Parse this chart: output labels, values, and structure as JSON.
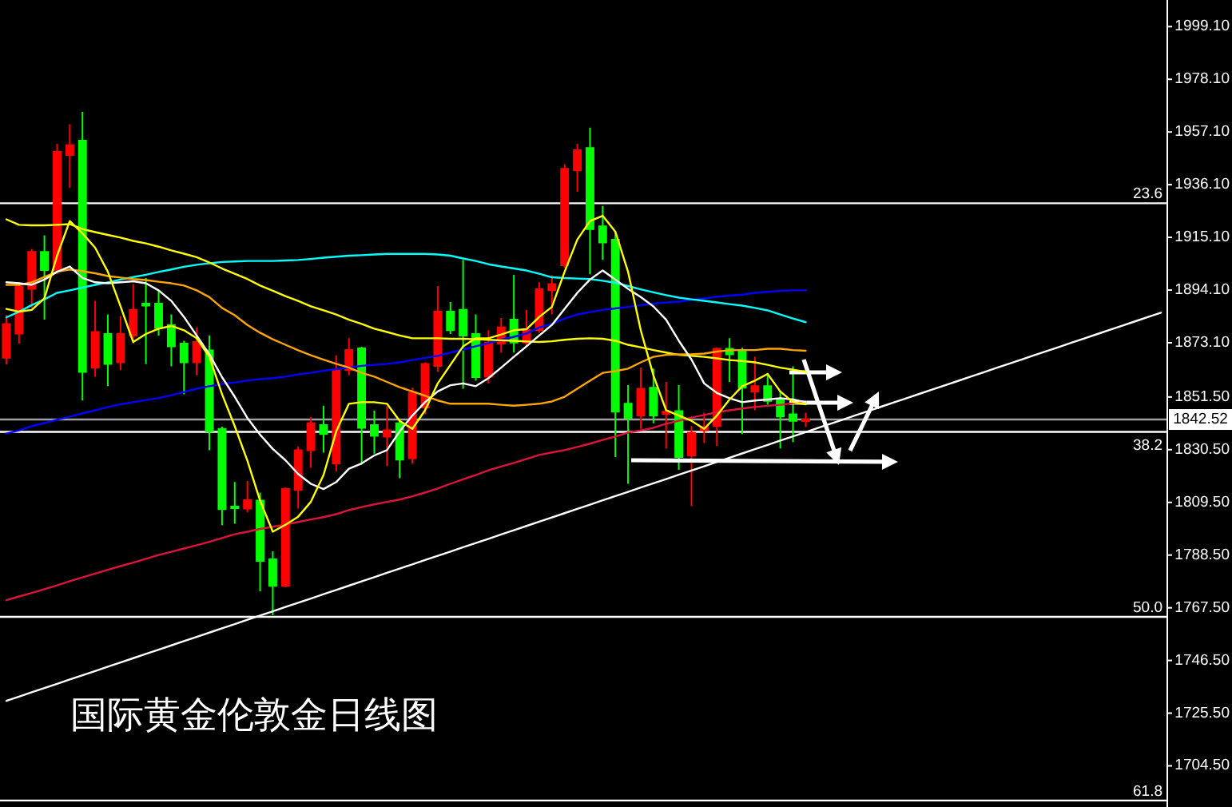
{
  "chart_data": {
    "type": "candlestick",
    "title": "国际黄金伦敦金日线图",
    "categories": [
      null,
      null,
      null,
      null,
      null,
      null,
      null,
      null,
      null,
      null,
      null,
      null,
      null,
      null,
      null,
      null,
      null,
      null,
      null,
      null,
      null,
      null,
      null,
      null,
      null,
      null,
      null,
      null,
      null,
      null,
      null,
      null,
      null,
      null,
      null,
      null,
      null,
      null,
      null,
      null,
      null,
      null,
      null,
      null,
      null,
      null,
      null,
      null,
      null,
      null,
      null,
      null,
      null,
      null,
      null,
      null,
      null,
      null,
      null,
      null,
      null,
      null,
      null,
      null,
      null,
      null,
      null,
      null,
      null,
      null,
      null,
      null,
      null,
      null,
      null,
      null,
      null,
      null,
      null,
      null,
      null,
      null,
      null,
      null,
      null,
      null,
      null,
      null,
      null,
      null,
      null,
      null
    ],
    "ohlc": [
      [
        1867.1,
        1884.2,
        1864.5,
        1880.6
      ],
      [
        1876.8,
        1897.2,
        1872.8,
        1895.5
      ],
      [
        1894.6,
        1910.4,
        1887.0,
        1909.3
      ],
      [
        1909.3,
        1915.9,
        1882.3,
        1902.1
      ],
      [
        1902.1,
        1952.4,
        1900.4,
        1949.2
      ],
      [
        1947.9,
        1960.2,
        1934.8,
        1951.8
      ],
      [
        1953.7,
        1965.1,
        1850.1,
        1861.5
      ],
      [
        1863.2,
        1889.8,
        1859.6,
        1877.4
      ],
      [
        1876.6,
        1884.4,
        1855.8,
        1864.7
      ],
      [
        1865.3,
        1883.8,
        1862.2,
        1876.6
      ],
      [
        1876.0,
        1896.5,
        1872.8,
        1886.2
      ],
      [
        1888.7,
        1898.9,
        1864.7,
        1887.9
      ],
      [
        1888.7,
        1894.0,
        1876.0,
        1879.0
      ],
      [
        1880.2,
        1884.4,
        1863.7,
        1871.7
      ],
      [
        1872.8,
        1873.9,
        1852.6,
        1865.3
      ],
      [
        1865.3,
        1879.2,
        1860.1,
        1873.4
      ],
      [
        1870.1,
        1876.0,
        1830.3,
        1837.8
      ],
      [
        1838.8,
        1839.7,
        1800.4,
        1806.8
      ],
      [
        1807.8,
        1817.6,
        1801.0,
        1807.2
      ],
      [
        1807.0,
        1818.0,
        1805.5,
        1810.4
      ],
      [
        1810.2,
        1813.4,
        1774.1,
        1786.2
      ],
      [
        1786.8,
        1790.0,
        1764.5,
        1776.2
      ],
      [
        1776.2,
        1815.5,
        1775.7,
        1814.8
      ],
      [
        1814.4,
        1831.8,
        1807.0,
        1830.3
      ],
      [
        1830.3,
        1843.5,
        1823.3,
        1841.0
      ],
      [
        1840.3,
        1848.0,
        1829.3,
        1836.7
      ],
      [
        1825.0,
        1868.1,
        1821.8,
        1862.2
      ],
      [
        1862.2,
        1874.9,
        1860.1,
        1870.2
      ],
      [
        1870.9,
        1871.5,
        1824.6,
        1839.2
      ],
      [
        1840.3,
        1846.0,
        1828.9,
        1836.0
      ],
      [
        1835.7,
        1847.8,
        1824.0,
        1838.2
      ],
      [
        1841.0,
        1842.4,
        1819.1,
        1826.5
      ],
      [
        1827.1,
        1855.2,
        1825.0,
        1853.2
      ],
      [
        1847.3,
        1865.3,
        1844.6,
        1864.7
      ],
      [
        1863.9,
        1895.7,
        1861.5,
        1885.5
      ],
      [
        1885.5,
        1889.3,
        1876.6,
        1878.1
      ],
      [
        1886.2,
        1906.1,
        1854.8,
        1876.0
      ],
      [
        1876.6,
        1884.4,
        1858.0,
        1859.4
      ],
      [
        1859.6,
        1878.1,
        1856.9,
        1873.2
      ],
      [
        1872.8,
        1883.0,
        1869.2,
        1879.2
      ],
      [
        1882.3,
        1900.2,
        1869.2,
        1873.2
      ],
      [
        1873.2,
        1886.2,
        1871.7,
        1878.1
      ],
      [
        1878.1,
        1897.2,
        1877.1,
        1894.4
      ],
      [
        1894.0,
        1900.0,
        1884.4,
        1896.5
      ],
      [
        1904.0,
        1944.3,
        1902.9,
        1942.4
      ],
      [
        1941.8,
        1952.4,
        1933.3,
        1949.8
      ],
      [
        1950.7,
        1958.8,
        1900.4,
        1918.4
      ],
      [
        1919.5,
        1927.6,
        1906.1,
        1913.1
      ],
      [
        1914.2,
        1917.4,
        1827.6,
        1845.6
      ],
      [
        1848.8,
        1856.2,
        1816.9,
        1843.1
      ],
      [
        1844.1,
        1863.2,
        1838.8,
        1854.8
      ],
      [
        1855.2,
        1862.8,
        1841.0,
        1844.1
      ],
      [
        1844.8,
        1857.5,
        1831.0,
        1845.6
      ],
      [
        1845.9,
        1856.2,
        1822.5,
        1827.6
      ],
      [
        1828.2,
        1839.9,
        1808.0,
        1837.3
      ],
      [
        1838.2,
        1845.2,
        1833.1,
        1839.5
      ],
      [
        1839.9,
        1871.3,
        1832.0,
        1870.7
      ],
      [
        1870.7,
        1874.9,
        1857.5,
        1868.5
      ],
      [
        1869.6,
        1871.1,
        1836.7,
        1855.2
      ],
      [
        1853.7,
        1867.5,
        1846.2,
        1855.8
      ],
      [
        1855.8,
        1861.1,
        1848.4,
        1849.9
      ],
      [
        1850.5,
        1853.7,
        1831.0,
        1843.7
      ],
      [
        1844.6,
        1863.7,
        1833.5,
        1842.0
      ],
      [
        1841.8,
        1845.2,
        1839.5,
        1842.52
      ],
      null,
      null,
      null,
      null,
      null,
      null,
      null,
      null,
      null,
      null,
      null,
      null,
      null,
      null,
      null,
      null,
      null,
      null,
      null,
      null,
      null,
      null,
      null,
      null,
      null,
      null,
      null,
      null
    ],
    "colors": [
      "#ff0000",
      "#ff0000",
      "#ff0000",
      "#00ff00",
      "#ff0000",
      "#ff0000",
      "#00ff00",
      "#ff0000",
      "#00ff00",
      "#ff0000",
      "#ff0000",
      "#00ff00",
      "#00ff00",
      "#00ff00",
      "#00ff00",
      "#ff0000",
      "#00ff00",
      "#00ff00",
      "#00ff00",
      "#ff0000",
      "#00ff00",
      "#00ff00",
      "#ff0000",
      "#ff0000",
      "#ff0000",
      "#00ff00",
      "#ff0000",
      "#ff0000",
      "#00ff00",
      "#00ff00",
      "#ff0000",
      "#00ff00",
      "#ff0000",
      "#ff0000",
      "#ff0000",
      "#00ff00",
      "#00ff00",
      "#00ff00",
      "#ff0000",
      "#ff0000",
      "#00ff00",
      "#ff0000",
      "#ff0000",
      "#ff0000",
      "#ff0000",
      "#ff0000",
      "#00ff00",
      "#00ff00",
      "#00ff00",
      "#00ff00",
      "#ff0000",
      "#00ff00",
      "#ff0000",
      "#00ff00",
      "#ff0000",
      "#ff0000",
      "#ff0000",
      "#00ff00",
      "#00ff00",
      "#ff0000",
      "#00ff00",
      "#00ff00",
      "#00ff00",
      "#ff0000",
      null,
      null,
      null,
      null,
      null,
      null,
      null,
      null,
      null,
      null,
      null,
      null,
      null,
      null,
      null,
      null,
      null,
      null,
      null,
      null,
      null,
      null,
      null,
      null,
      null,
      null,
      null,
      null
    ],
    "series": [
      {
        "type": "line",
        "color": "#dc143c",
        "values": [
          1770.5,
          1772.0,
          1773.4,
          1774.9,
          1776.4,
          1778.1,
          1779.6,
          1781.1,
          1782.6,
          1784.1,
          1785.5,
          1787.0,
          1788.5,
          1789.8,
          1791.1,
          1792.4,
          1793.8,
          1795.3,
          1796.8,
          1797.8,
          1798.9,
          1799.8,
          1800.6,
          1801.7,
          1802.7,
          1803.6,
          1804.8,
          1806.4,
          1807.6,
          1808.7,
          1809.7,
          1810.6,
          1811.9,
          1813.4,
          1815.0,
          1816.9,
          1818.7,
          1820.4,
          1822.3,
          1823.8,
          1825.2,
          1826.8,
          1828.4,
          1829.4,
          1830.3,
          1831.6,
          1832.9,
          1834.4,
          1835.7,
          1837.3,
          1838.2,
          1839.2,
          1840.8,
          1842.0,
          1843.3,
          1844.3,
          1845.4,
          1846.2,
          1846.9,
          1847.5,
          1848.0,
          1848.4,
          1849.0,
          1849.4,
          null,
          null,
          null,
          null,
          null,
          null,
          null,
          null,
          null,
          null,
          null,
          null,
          null,
          null,
          null,
          null,
          null,
          null,
          null,
          null,
          null,
          null,
          null,
          null,
          null,
          null,
          null,
          null
        ]
      },
      {
        "type": "line",
        "color": "#0000ff",
        "values": [
          1836.9,
          1838.2,
          1839.9,
          1841.1,
          1842.4,
          1843.7,
          1845.0,
          1846.2,
          1847.5,
          1848.6,
          1849.4,
          1850.3,
          1851.1,
          1852.2,
          1853.5,
          1854.8,
          1855.8,
          1856.7,
          1857.3,
          1858.0,
          1858.6,
          1859.0,
          1859.6,
          1860.5,
          1861.1,
          1862.0,
          1862.6,
          1863.2,
          1863.9,
          1864.3,
          1864.7,
          1865.3,
          1866.2,
          1867.1,
          1867.9,
          1869.2,
          1870.4,
          1871.7,
          1873.0,
          1874.3,
          1875.5,
          1876.8,
          1879.2,
          1880.7,
          1882.8,
          1884.4,
          1885.3,
          1886.2,
          1886.8,
          1887.4,
          1888.1,
          1888.7,
          1889.2,
          1889.5,
          1890.2,
          1890.8,
          1891.4,
          1891.9,
          1892.3,
          1893.0,
          1893.4,
          1893.8,
          1894.0,
          1894.0,
          null,
          null,
          null,
          null,
          null,
          null,
          null,
          null,
          null,
          null,
          null,
          null,
          null,
          null,
          null,
          null,
          null,
          null,
          null,
          null,
          null,
          null,
          null,
          null,
          null,
          null,
          null,
          null
        ]
      },
      {
        "type": "line",
        "color": "#00ffff",
        "values": [
          1883.2,
          1885.5,
          1888.1,
          1890.4,
          1893.0,
          1894.0,
          1895.1,
          1896.2,
          1897.2,
          1898.3,
          1899.3,
          1900.2,
          1901.3,
          1902.3,
          1903.4,
          1904.2,
          1904.8,
          1905.3,
          1905.5,
          1905.7,
          1905.7,
          1905.7,
          1905.9,
          1906.1,
          1906.5,
          1907.0,
          1907.4,
          1907.8,
          1908.0,
          1908.3,
          1908.5,
          1908.5,
          1908.5,
          1908.5,
          1908.3,
          1907.8,
          1906.7,
          1905.7,
          1904.4,
          1903.5,
          1902.7,
          1901.9,
          1900.6,
          1899.2,
          1898.9,
          1898.7,
          1898.5,
          1897.8,
          1897.0,
          1895.7,
          1894.4,
          1893.2,
          1892.1,
          1891.1,
          1890.4,
          1889.8,
          1889.2,
          1888.5,
          1887.9,
          1887.0,
          1886.0,
          1884.4,
          1882.8,
          1881.3,
          null,
          null,
          null,
          null,
          null,
          null,
          null,
          null,
          null,
          null,
          null,
          null,
          null,
          null,
          null,
          null,
          null,
          null,
          null,
          null,
          null,
          null,
          null,
          null,
          null,
          null,
          null,
          null
        ]
      },
      {
        "type": "line",
        "color": "#ffff00",
        "values": [
          1922.3,
          1920.1,
          1919.9,
          1919.9,
          1920.1,
          1920.4,
          1918.4,
          1917.2,
          1916.1,
          1915.0,
          1913.7,
          1912.7,
          1911.4,
          1909.9,
          1908.6,
          1907.2,
          1905.1,
          1902.7,
          1900.6,
          1898.5,
          1895.9,
          1893.8,
          1891.7,
          1889.8,
          1887.6,
          1886.0,
          1884.4,
          1882.3,
          1880.6,
          1878.7,
          1877.4,
          1876.0,
          1874.9,
          1874.9,
          1874.9,
          1874.7,
          1874.7,
          1874.5,
          1874.3,
          1874.1,
          1873.9,
          1873.6,
          1873.4,
          1873.7,
          1874.3,
          1874.7,
          1874.9,
          1874.7,
          1873.9,
          1872.3,
          1871.3,
          1870.2,
          1869.2,
          1868.3,
          1867.9,
          1867.5,
          1866.9,
          1866.2,
          1865.8,
          1865.3,
          1864.3,
          1863.2,
          1862.4,
          1861.5,
          null,
          null,
          null,
          null,
          null,
          null,
          null,
          null,
          null,
          null,
          null,
          null,
          null,
          null,
          null,
          null,
          null,
          null,
          null,
          null,
          null,
          null,
          null,
          null,
          null,
          null,
          null,
          null
        ]
      },
      {
        "type": "line",
        "color": "#ffa500",
        "values": [
          1896.2,
          1896.2,
          1897.2,
          1899.3,
          1901.4,
          1902.3,
          1901.6,
          1900.8,
          1899.7,
          1899.1,
          1898.5,
          1898.1,
          1897.4,
          1896.8,
          1895.9,
          1894.0,
          1891.3,
          1887.0,
          1884.1,
          1880.2,
          1877.1,
          1874.5,
          1872.3,
          1870.1,
          1868.1,
          1866.4,
          1864.7,
          1863.2,
          1861.1,
          1859.6,
          1857.5,
          1855.4,
          1853.7,
          1852.0,
          1850.1,
          1848.8,
          1848.8,
          1848.8,
          1848.8,
          1848.4,
          1848.0,
          1848.4,
          1848.8,
          1849.7,
          1851.6,
          1854.8,
          1858.0,
          1861.1,
          1861.8,
          1862.8,
          1865.3,
          1867.5,
          1868.3,
          1868.5,
          1868.5,
          1868.8,
          1869.6,
          1870.1,
          1870.2,
          1870.2,
          1870.7,
          1870.7,
          1870.2,
          1869.9,
          null,
          null,
          null,
          null,
          null,
          null,
          null,
          null,
          null,
          null,
          null,
          null,
          null,
          null,
          null,
          null,
          null,
          null,
          null,
          null,
          null,
          null,
          null,
          null,
          null,
          null,
          null,
          null
        ]
      },
      {
        "type": "line",
        "color": "#ffffff",
        "values": [
          1897.2,
          1896.8,
          1896.2,
          1898.3,
          1901.4,
          1903.5,
          1898.9,
          1897.2,
          1896.8,
          1897.2,
          1897.6,
          1896.8,
          1894.0,
          1889.8,
          1883.4,
          1876.0,
          1868.5,
          1859.4,
          1851.6,
          1843.1,
          1836.5,
          1830.8,
          1826.3,
          1820.8,
          1816.9,
          1814.8,
          1817.6,
          1822.9,
          1825.0,
          1828.2,
          1830.3,
          1837.8,
          1844.1,
          1849.4,
          1853.7,
          1856.2,
          1856.9,
          1855.8,
          1859.0,
          1863.2,
          1867.5,
          1871.7,
          1876.0,
          1880.2,
          1886.6,
          1893.0,
          1898.3,
          1901.9,
          1898.3,
          1894.6,
          1891.3,
          1887.6,
          1882.3,
          1873.9,
          1866.4,
          1856.9,
          1853.1,
          1851.0,
          1849.4,
          1850.1,
          1850.5,
          1851.0,
          1850.5,
          1849.4,
          null,
          null,
          null,
          null,
          null,
          null,
          null,
          null,
          null,
          null,
          null,
          null,
          null,
          null,
          null,
          null,
          null,
          null,
          null,
          null,
          null,
          null,
          null,
          null,
          null,
          null,
          null,
          null
        ]
      },
      {
        "type": "line",
        "color": "#ffff00",
        "values": [
          1886.6,
          1885.5,
          1886.2,
          1890.8,
          1907.8,
          1921.6,
          1916.7,
          1911.0,
          1901.4,
          1887.6,
          1873.4,
          1876.6,
          1878.7,
          1879.8,
          1878.1,
          1874.9,
          1867.5,
          1852.6,
          1839.9,
          1826.1,
          1810.2,
          1797.8,
          1800.6,
          1803.8,
          1809.7,
          1820.4,
          1837.8,
          1848.8,
          1849.4,
          1849.4,
          1848.8,
          1842.0,
          1838.8,
          1846.2,
          1856.9,
          1864.3,
          1871.7,
          1874.9,
          1874.9,
          1876.4,
          1878.1,
          1878.5,
          1883.4,
          1887.4,
          1901.4,
          1914.2,
          1921.6,
          1923.7,
          1917.4,
          1901.4,
          1878.1,
          1860.1,
          1846.2,
          1844.1,
          1842.0,
          1838.8,
          1844.1,
          1850.5,
          1855.8,
          1858.0,
          1860.7,
          1853.7,
          1849.4,
          1848.6,
          null,
          null,
          null,
          null,
          null,
          null,
          null,
          null,
          null,
          null,
          null,
          null,
          null,
          null,
          null,
          null,
          null,
          null,
          null,
          null,
          null,
          null,
          null,
          null,
          null,
          null,
          null,
          null
        ]
      },
      {
        "type": "line",
        "color": "#ffffff",
        "values": [
          1730.4,
          1732.1,
          1733.8,
          1735.5,
          1737.2,
          1738.9,
          1740.6,
          1742.3,
          1744.0,
          1745.7,
          1747.4,
          1749.1,
          1750.8,
          1752.5,
          1754.2,
          1755.9,
          1757.6,
          1759.3,
          1761.0,
          1762.7,
          1764.4,
          1766.1,
          1767.8,
          1769.5,
          1771.2,
          1772.9,
          1774.6,
          1776.3,
          1778.0,
          1779.7,
          1781.4,
          1783.1,
          1784.8,
          1786.5,
          1788.2,
          1789.9,
          1791.6,
          1793.3,
          1795.0,
          1796.7,
          1798.4,
          1800.1,
          1801.8,
          1803.5,
          1805.2,
          1806.9,
          1808.6,
          1810.3,
          1812.0,
          1813.7,
          1815.4,
          1817.1,
          1818.8,
          1820.5,
          1822.2,
          1823.9,
          1825.6,
          1827.3,
          1829.0,
          1830.7,
          1832.4,
          1834.1,
          1835.8,
          1837.5,
          1839.2,
          1840.9,
          1842.6,
          1844.3,
          1846.0,
          1847.7,
          1849.4,
          1851.1,
          1852.8,
          1854.5,
          1856.2,
          1857.9,
          1859.6,
          1861.3,
          1863.0,
          1864.7,
          1866.4,
          1868.1,
          1869.8,
          1871.5,
          1873.2,
          1874.9,
          1876.6,
          1878.3,
          1880.0,
          1881.7,
          1883.4,
          1885.1
        ]
      }
    ],
    "ylim": [
      1688.1,
      2009.7
    ],
    "yticks": [
      {
        "value": 1999.1,
        "label": "1999.10"
      },
      {
        "value": 1978.1,
        "label": "1978.10"
      },
      {
        "value": 1957.1,
        "label": "1957.10"
      },
      {
        "value": 1936.1,
        "label": "1936.10"
      },
      {
        "value": 1915.1,
        "label": "1915.10"
      },
      {
        "value": 1894.1,
        "label": "1894.10"
      },
      {
        "value": 1873.1,
        "label": "1873.10"
      },
      {
        "value": 1851.5,
        "label": "1851.50"
      },
      {
        "value": 1830.5,
        "label": "1830.50"
      },
      {
        "value": 1809.5,
        "label": "1809.50"
      },
      {
        "value": 1788.5,
        "label": "1788.50"
      },
      {
        "value": 1767.5,
        "label": "1767.50"
      },
      {
        "value": 1746.5,
        "label": "1746.50"
      },
      {
        "value": 1725.5,
        "label": "1725.50"
      },
      {
        "value": 1704.5,
        "label": "1704.50"
      }
    ],
    "ref_lines": [
      {
        "axis": "y",
        "value": 1928.7,
        "color": "#ffffff"
      },
      {
        "axis": "y",
        "value": 1842.52,
        "label": "1842.52",
        "color": "#a0a0a4"
      },
      {
        "axis": "y",
        "value": 1837.6,
        "color": "#ffffff"
      },
      {
        "axis": "y",
        "value": 1763.9,
        "color": "#ffffff"
      },
      {
        "axis": "y",
        "value": 1690.7,
        "color": "#ffffff"
      }
    ],
    "annotations": [
      {
        "text": "23.6",
        "y": 1928.7
      },
      {
        "text": "38.2",
        "y": 1837.6
      },
      {
        "text": "50.0",
        "y": 1763.9
      },
      {
        "text": "61.8",
        "y": 1690.7
      }
    ]
  }
}
